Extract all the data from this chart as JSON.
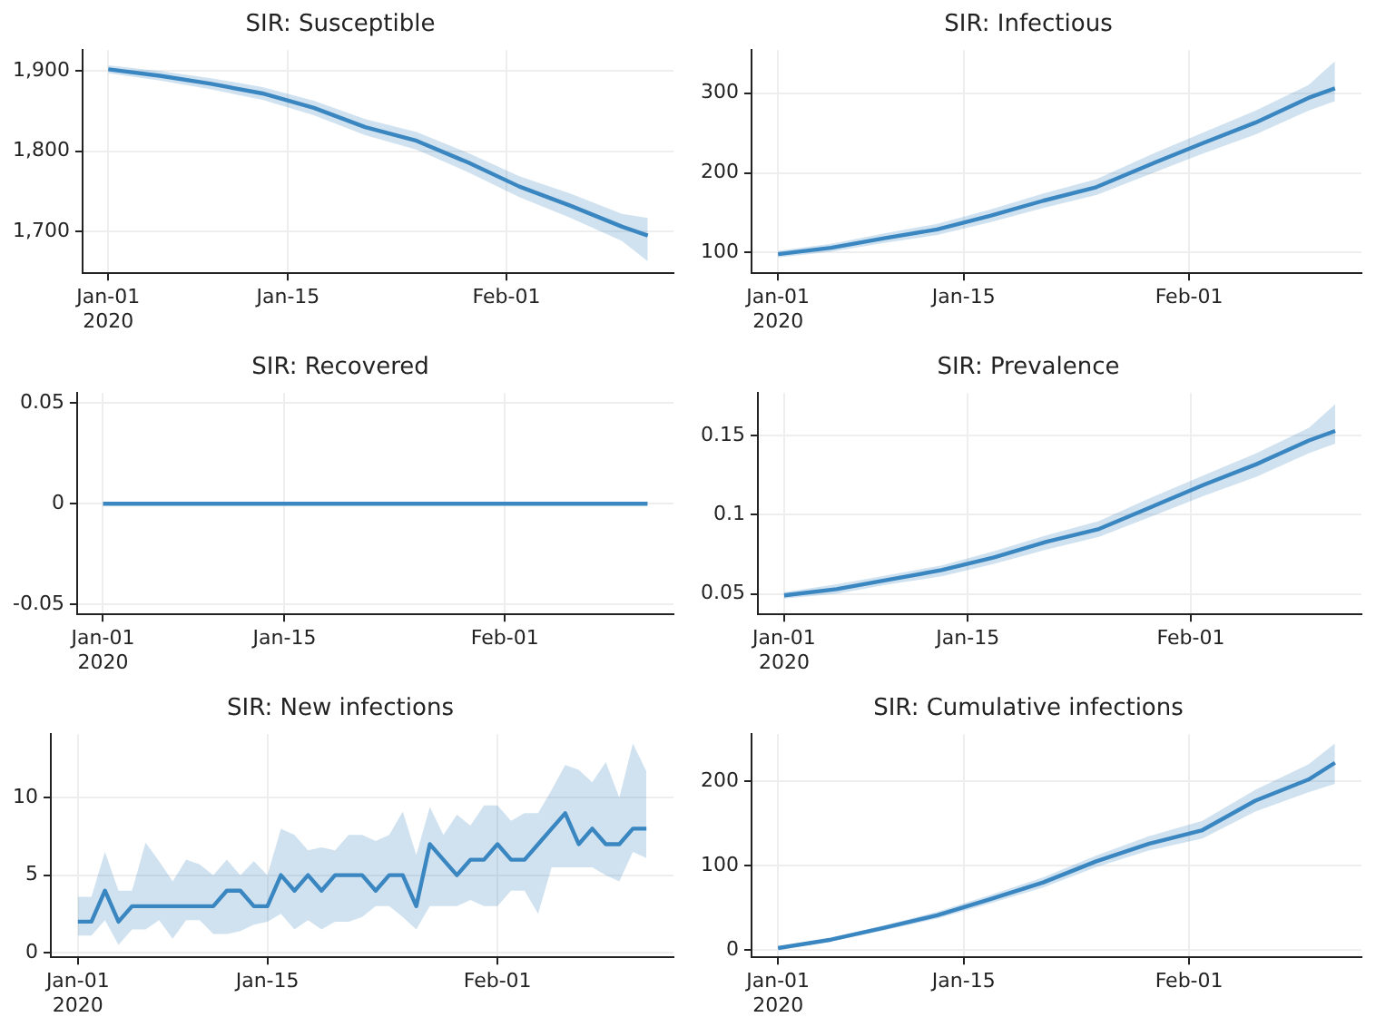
{
  "chart_data": [
    {
      "type": "line",
      "title": "SIR: Susceptible",
      "x": [
        "2020-01-01",
        "2020-01-05",
        "2020-01-09",
        "2020-01-13",
        "2020-01-17",
        "2020-01-21",
        "2020-01-25",
        "2020-01-29",
        "2020-02-02",
        "2020-02-06",
        "2020-02-10",
        "2020-02-12"
      ],
      "series": [
        {
          "color": "#3a87c2",
          "values": [
            1902,
            1894,
            1884,
            1872,
            1854,
            1830,
            1813,
            1786,
            1756,
            1732,
            1706,
            1695
          ],
          "lower": [
            1897,
            1888,
            1877,
            1864,
            1845,
            1820,
            1802,
            1774,
            1743,
            1717,
            1688,
            1663
          ],
          "upper": [
            1907,
            1900,
            1891,
            1880,
            1863,
            1840,
            1824,
            1798,
            1769,
            1747,
            1722,
            1717
          ]
        }
      ],
      "xlim": [
        "2019-12-30",
        "2020-02-14"
      ],
      "xticks": [
        {
          "value": "2020-01-01",
          "label": "Jan-01\n2020"
        },
        {
          "value": "2020-01-15",
          "label": "Jan-15"
        },
        {
          "value": "2020-02-01",
          "label": "Feb-01"
        }
      ],
      "ylim": [
        1648,
        1926
      ],
      "yticks": [
        {
          "value": 1700,
          "label": "1,700"
        },
        {
          "value": 1800,
          "label": "1,800"
        },
        {
          "value": 1900,
          "label": "1,900"
        }
      ],
      "grid": true,
      "marker": "none"
    },
    {
      "type": "line",
      "title": "SIR: Infectious",
      "x": [
        "2020-01-01",
        "2020-01-05",
        "2020-01-09",
        "2020-01-13",
        "2020-01-17",
        "2020-01-21",
        "2020-01-25",
        "2020-01-29",
        "2020-02-02",
        "2020-02-06",
        "2020-02-10",
        "2020-02-12"
      ],
      "series": [
        {
          "color": "#3a87c2",
          "values": [
            98,
            106,
            118,
            129,
            146,
            165,
            182,
            210,
            237,
            263,
            294,
            306
          ],
          "lower": [
            94,
            101,
            112,
            122,
            138,
            156,
            172,
            198,
            224,
            248,
            278,
            290
          ],
          "upper": [
            102,
            111,
            124,
            136,
            154,
            174,
            192,
            222,
            250,
            278,
            310,
            340
          ]
        }
      ],
      "xlim": [
        "2019-12-30",
        "2020-02-14"
      ],
      "xticks": [
        {
          "value": "2020-01-01",
          "label": "Jan-01\n2020"
        },
        {
          "value": "2020-01-15",
          "label": "Jan-15"
        },
        {
          "value": "2020-02-01",
          "label": "Feb-01"
        }
      ],
      "ylim": [
        74,
        354
      ],
      "yticks": [
        100,
        200,
        300
      ],
      "grid": true,
      "marker": "none"
    },
    {
      "type": "line",
      "title": "SIR: Recovered",
      "x": [
        "2020-01-01",
        "2020-02-12"
      ],
      "series": [
        {
          "color": "#3a87c2",
          "values": [
            0,
            0
          ]
        }
      ],
      "xlim": [
        "2019-12-30",
        "2020-02-14"
      ],
      "xticks": [
        {
          "value": "2020-01-01",
          "label": "Jan-01\n2020"
        },
        {
          "value": "2020-01-15",
          "label": "Jan-15"
        },
        {
          "value": "2020-02-01",
          "label": "Feb-01"
        }
      ],
      "ylim": [
        -0.055,
        0.055
      ],
      "yticks": [
        -0.05,
        0,
        0.05
      ],
      "grid": true,
      "marker": "none"
    },
    {
      "type": "line",
      "title": "SIR: Prevalence",
      "x": [
        "2020-01-01",
        "2020-01-05",
        "2020-01-09",
        "2020-01-13",
        "2020-01-17",
        "2020-01-21",
        "2020-01-25",
        "2020-01-29",
        "2020-02-02",
        "2020-02-06",
        "2020-02-10",
        "2020-02-12"
      ],
      "series": [
        {
          "color": "#3a87c2",
          "values": [
            0.049,
            0.053,
            0.059,
            0.065,
            0.073,
            0.083,
            0.091,
            0.105,
            0.119,
            0.132,
            0.147,
            0.153
          ],
          "lower": [
            0.047,
            0.05,
            0.056,
            0.061,
            0.069,
            0.078,
            0.086,
            0.099,
            0.112,
            0.124,
            0.139,
            0.145
          ],
          "upper": [
            0.051,
            0.056,
            0.062,
            0.068,
            0.077,
            0.087,
            0.096,
            0.111,
            0.125,
            0.139,
            0.155,
            0.17
          ]
        }
      ],
      "xlim": [
        "2019-12-30",
        "2020-02-14"
      ],
      "xticks": [
        {
          "value": "2020-01-01",
          "label": "Jan-01\n2020"
        },
        {
          "value": "2020-01-15",
          "label": "Jan-15"
        },
        {
          "value": "2020-02-01",
          "label": "Feb-01"
        }
      ],
      "ylim": [
        0.037,
        0.177
      ],
      "yticks": [
        0.05,
        0.1,
        0.15
      ],
      "grid": true,
      "marker": "none"
    },
    {
      "type": "line",
      "title": "SIR: New infections",
      "x": [
        "2020-01-01",
        "2020-01-02",
        "2020-01-03",
        "2020-01-04",
        "2020-01-05",
        "2020-01-06",
        "2020-01-07",
        "2020-01-08",
        "2020-01-09",
        "2020-01-10",
        "2020-01-11",
        "2020-01-12",
        "2020-01-13",
        "2020-01-14",
        "2020-01-15",
        "2020-01-16",
        "2020-01-17",
        "2020-01-18",
        "2020-01-19",
        "2020-01-20",
        "2020-01-21",
        "2020-01-22",
        "2020-01-23",
        "2020-01-24",
        "2020-01-25",
        "2020-01-26",
        "2020-01-27",
        "2020-01-28",
        "2020-01-29",
        "2020-01-30",
        "2020-01-31",
        "2020-02-01",
        "2020-02-02",
        "2020-02-03",
        "2020-02-04",
        "2020-02-05",
        "2020-02-06",
        "2020-02-07",
        "2020-02-08",
        "2020-02-09",
        "2020-02-10",
        "2020-02-11",
        "2020-02-12"
      ],
      "series": [
        {
          "color": "#3a87c2",
          "values": [
            2,
            2,
            4,
            2,
            3,
            3,
            3,
            3,
            3,
            3,
            3,
            4,
            4,
            3,
            3,
            5,
            4,
            5,
            4,
            5,
            5,
            5,
            4,
            5,
            5,
            3,
            7,
            6,
            5,
            6,
            6,
            7,
            6,
            6,
            7,
            8,
            9,
            7,
            8,
            7,
            7,
            8,
            8
          ],
          "lower": [
            1.1,
            1.1,
            2.1,
            0.5,
            1.5,
            1.5,
            2.1,
            0.9,
            2.1,
            2.1,
            1.2,
            1.2,
            1.4,
            1.8,
            2,
            2.5,
            1.5,
            2.1,
            1.5,
            2,
            2,
            2.3,
            3,
            3,
            2.3,
            1.5,
            3,
            3,
            3,
            3.4,
            3,
            3,
            4,
            4,
            2.5,
            5.5,
            5.5,
            5.5,
            5.5,
            5,
            4.6,
            6.5,
            6.1
          ],
          "upper": [
            3.6,
            3.6,
            6.5,
            4,
            4,
            7.1,
            5.9,
            4.6,
            6,
            5.7,
            5,
            6,
            5,
            5.9,
            5,
            8,
            7.6,
            6.6,
            6.8,
            6.6,
            7.6,
            7.6,
            7.2,
            7.6,
            9.1,
            6.3,
            9.4,
            7.6,
            8.9,
            8.2,
            9.5,
            9.5,
            8.5,
            9,
            9,
            10.5,
            12.1,
            11.8,
            11,
            12.3,
            10,
            13.5,
            11.7
          ]
        }
      ],
      "xlim": [
        "2019-12-30",
        "2020-02-14"
      ],
      "xticks": [
        {
          "value": "2020-01-01",
          "label": "Jan-01\n2020"
        },
        {
          "value": "2020-01-15",
          "label": "Jan-15"
        },
        {
          "value": "2020-02-01",
          "label": "Feb-01"
        }
      ],
      "ylim": [
        -0.3,
        14.1
      ],
      "yticks": [
        0,
        5,
        10
      ],
      "grid": true,
      "marker": "none"
    },
    {
      "type": "line",
      "title": "SIR: Cumulative infections",
      "x": [
        "2020-01-01",
        "2020-01-05",
        "2020-01-09",
        "2020-01-13",
        "2020-01-17",
        "2020-01-21",
        "2020-01-25",
        "2020-01-29",
        "2020-02-02",
        "2020-02-06",
        "2020-02-10",
        "2020-02-12"
      ],
      "series": [
        {
          "color": "#3a87c2",
          "values": [
            2,
            12,
            26,
            41,
            60,
            80,
            105,
            126,
            142,
            177,
            202,
            222
          ],
          "lower": [
            1,
            10,
            23,
            37,
            55,
            74,
            98,
            118,
            132,
            164,
            187,
            197
          ],
          "upper": [
            3,
            14,
            29,
            45,
            65,
            86,
            112,
            135,
            153,
            190,
            220,
            245
          ]
        }
      ],
      "xlim": [
        "2019-12-30",
        "2020-02-14"
      ],
      "xticks": [
        {
          "value": "2020-01-01",
          "label": "Jan-01\n2020"
        },
        {
          "value": "2020-01-15",
          "label": "Jan-15"
        },
        {
          "value": "2020-02-01",
          "label": "Feb-01"
        }
      ],
      "ylim": [
        -9,
        256
      ],
      "yticks": [
        0,
        100,
        200
      ],
      "grid": true,
      "marker": "none"
    }
  ]
}
